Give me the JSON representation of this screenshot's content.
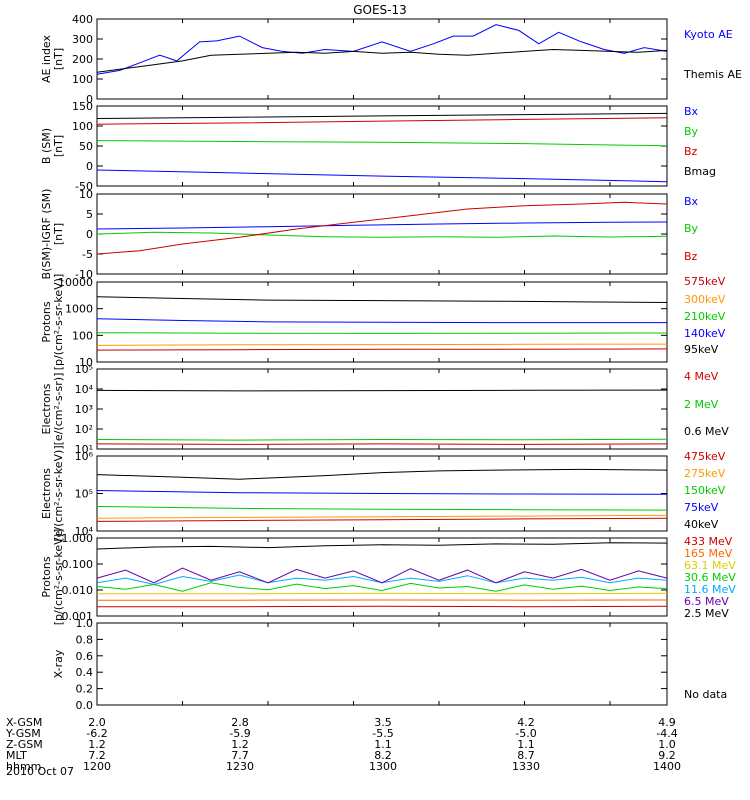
{
  "title": "GOES-13",
  "date": "2010 Oct 07",
  "no_data": "No data",
  "footer": [
    {
      "label": "X-GSM",
      "values": [
        "2.0",
        "2.8",
        "3.5",
        "4.2",
        "4.9"
      ]
    },
    {
      "label": "Y-GSM",
      "values": [
        "-6.2",
        "-5.9",
        "-5.5",
        "-5.0",
        "-4.4"
      ]
    },
    {
      "label": "Z-GSM",
      "values": [
        "1.2",
        "1.2",
        "1.1",
        "1.1",
        "1.0"
      ]
    },
    {
      "label": "MLT",
      "values": [
        "7.2",
        "7.7",
        "8.2",
        "8.7",
        "9.2"
      ]
    },
    {
      "label": "hhmm",
      "values": [
        "1200",
        "1230",
        "1300",
        "1330",
        "1400"
      ]
    }
  ],
  "chart_data": [
    {
      "type": "line",
      "ylabel_lines": [
        "AE index",
        "[nT]"
      ],
      "yscale": "linear",
      "ylim": [
        0,
        420
      ],
      "yticks": [
        "0",
        "100",
        "200",
        "300",
        "400"
      ],
      "xlim": [
        1200,
        1400
      ],
      "series": [
        {
          "name": "Kyoto AE",
          "color": "#0000ff",
          "x": [
            1200,
            1208,
            1215,
            1222,
            1228,
            1232,
            1236,
            1242,
            1250,
            1258,
            1265,
            1272,
            1280,
            1290,
            1300,
            1310,
            1318,
            1325,
            1332,
            1340,
            1348,
            1355,
            1362,
            1370,
            1378,
            1385,
            1392,
            1400
          ],
          "y": [
            130,
            150,
            190,
            230,
            200,
            250,
            300,
            305,
            330,
            270,
            250,
            240,
            260,
            250,
            300,
            250,
            290,
            330,
            330,
            390,
            360,
            290,
            350,
            300,
            260,
            240,
            270,
            250
          ]
        },
        {
          "name": "Themis AE",
          "color": "#000000",
          "x": [
            1200,
            1215,
            1230,
            1240,
            1250,
            1260,
            1270,
            1280,
            1290,
            1300,
            1310,
            1320,
            1330,
            1340,
            1350,
            1360,
            1370,
            1380,
            1390,
            1400
          ],
          "y": [
            140,
            170,
            200,
            230,
            235,
            240,
            245,
            240,
            250,
            240,
            245,
            235,
            230,
            240,
            250,
            260,
            255,
            250,
            245,
            255
          ]
        }
      ]
    },
    {
      "type": "line",
      "ylabel_lines": [
        "B (SM)",
        "[nT]"
      ],
      "yscale": "linear",
      "ylim": [
        -55,
        130
      ],
      "yticks": [
        "-50",
        "0",
        "50",
        "100",
        "150"
      ],
      "xlim": [
        1200,
        1400
      ],
      "series": [
        {
          "name": "Bx",
          "color": "#0000ff",
          "x": [
            1200,
            1250,
            1300,
            1350,
            1400
          ],
          "y": [
            -18,
            -25,
            -32,
            -38,
            -45
          ]
        },
        {
          "name": "By",
          "color": "#00cc00",
          "x": [
            1200,
            1250,
            1300,
            1350,
            1400
          ],
          "y": [
            50,
            48,
            46,
            43,
            38
          ]
        },
        {
          "name": "Bz",
          "color": "#cc0000",
          "x": [
            1200,
            1250,
            1300,
            1350,
            1400
          ],
          "y": [
            88,
            91,
            95,
            99,
            103
          ]
        },
        {
          "name": "Bmag",
          "color": "#000000",
          "x": [
            1200,
            1250,
            1300,
            1350,
            1400
          ],
          "y": [
            101,
            104,
            107,
            110,
            113
          ]
        }
      ]
    },
    {
      "type": "line",
      "ylabel_lines": [
        "B(SM)-IGRF (SM)",
        "[nT]"
      ],
      "yscale": "linear",
      "ylim": [
        -12,
        12
      ],
      "yticks": [
        "-10",
        "-5",
        "0",
        "5",
        "10"
      ],
      "xlim": [
        1200,
        1400
      ],
      "series": [
        {
          "name": "Bx",
          "color": "#0000ff",
          "x": [
            1200,
            1230,
            1260,
            1290,
            1320,
            1350,
            1380,
            1400
          ],
          "y": [
            1.5,
            1.8,
            2.2,
            2.6,
            3.0,
            3.3,
            3.5,
            3.6
          ]
        },
        {
          "name": "By",
          "color": "#00cc00",
          "x": [
            1200,
            1220,
            1240,
            1260,
            1280,
            1300,
            1320,
            1340,
            1360,
            1380,
            1400
          ],
          "y": [
            0,
            0.5,
            0.3,
            -0.3,
            -0.8,
            -1.0,
            -0.8,
            -1.0,
            -0.6,
            -0.9,
            -0.7
          ]
        },
        {
          "name": "Bz",
          "color": "#cc0000",
          "x": [
            1200,
            1215,
            1230,
            1250,
            1270,
            1290,
            1310,
            1330,
            1350,
            1370,
            1385,
            1400
          ],
          "y": [
            -6,
            -5,
            -3,
            -1,
            1.5,
            3.5,
            5.5,
            7.5,
            8.5,
            9.0,
            9.5,
            9.0
          ]
        }
      ]
    },
    {
      "type": "line",
      "ylabel_lines": [
        "Protons",
        "[p/(cm²-s-sr-keV)]"
      ],
      "yscale": "log",
      "ylim": [
        10,
        10000
      ],
      "yticks": [
        "10",
        "100",
        "1000",
        "10000"
      ],
      "xlim": [
        1200,
        1400
      ],
      "series": [
        {
          "name": "575keV",
          "color": "#cc0000",
          "x": [
            1200,
            1250,
            1300,
            1350,
            1400
          ],
          "y": [
            28,
            29,
            30,
            30,
            31
          ]
        },
        {
          "name": "300keV",
          "color": "#ff9900",
          "x": [
            1200,
            1250,
            1300,
            1350,
            1400
          ],
          "y": [
            42,
            44,
            45,
            46,
            47
          ]
        },
        {
          "name": "210keV",
          "color": "#00cc00",
          "x": [
            1200,
            1250,
            1300,
            1350,
            1400
          ],
          "y": [
            125,
            120,
            118,
            120,
            122
          ]
        },
        {
          "name": "140keV",
          "color": "#0000ff",
          "x": [
            1200,
            1230,
            1260,
            1300,
            1340,
            1400
          ],
          "y": [
            420,
            360,
            320,
            310,
            300,
            300
          ]
        },
        {
          "name": "95keV",
          "color": "#000000",
          "x": [
            1200,
            1230,
            1260,
            1300,
            1340,
            1370,
            1400
          ],
          "y": [
            2800,
            2400,
            2100,
            2000,
            1900,
            1800,
            1700
          ]
        }
      ]
    },
    {
      "type": "line",
      "ylabel_lines": [
        "Electrons",
        "[e/(cm²-s-sr)]"
      ],
      "yscale": "log",
      "ylim": [
        10,
        100000
      ],
      "yticks": [
        "10¹",
        "10²",
        "10³",
        "10⁴",
        "10⁵"
      ],
      "xlim": [
        1200,
        1400
      ],
      "series": [
        {
          "name": "4 MeV",
          "color": "#cc0000",
          "x": [
            1200,
            1250,
            1300,
            1350,
            1400
          ],
          "y": [
            18,
            17,
            18,
            17,
            18
          ]
        },
        {
          "name": "2 MeV",
          "color": "#00cc00",
          "x": [
            1200,
            1250,
            1300,
            1350,
            1400
          ],
          "y": [
            30,
            28,
            30,
            29,
            31
          ]
        },
        {
          "name": "0.6 MeV",
          "color": "#000000",
          "x": [
            1200,
            1250,
            1300,
            1350,
            1400
          ],
          "y": [
            8500,
            8000,
            8300,
            8600,
            8800
          ]
        }
      ]
    },
    {
      "type": "line",
      "ylabel_lines": [
        "Electrons",
        "[e/(cm²-s-sr-keV)]"
      ],
      "yscale": "log",
      "ylim": [
        10000,
        1000000
      ],
      "yticks": [
        "10⁴",
        "10⁵",
        "10⁶"
      ],
      "xlim": [
        1200,
        1400
      ],
      "series": [
        {
          "name": "475keV",
          "color": "#cc0000",
          "x": [
            1200,
            1250,
            1300,
            1350,
            1400
          ],
          "y": [
            18000,
            19000,
            20000,
            21000,
            22000
          ]
        },
        {
          "name": "275keV",
          "color": "#ff9900",
          "x": [
            1200,
            1250,
            1300,
            1350,
            1400
          ],
          "y": [
            22000,
            23000,
            24000,
            25000,
            26000
          ]
        },
        {
          "name": "150keV",
          "color": "#00cc00",
          "x": [
            1200,
            1250,
            1300,
            1350,
            1400
          ],
          "y": [
            45000,
            40000,
            38000,
            37000,
            36000
          ]
        },
        {
          "name": "75keV",
          "color": "#0000ff",
          "x": [
            1200,
            1250,
            1300,
            1350,
            1400
          ],
          "y": [
            120000,
            105000,
            100000,
            97000,
            95000
          ]
        },
        {
          "name": "40keV",
          "color": "#000000",
          "x": [
            1200,
            1230,
            1250,
            1280,
            1300,
            1320,
            1340,
            1370,
            1400
          ],
          "y": [
            320000,
            270000,
            240000,
            300000,
            360000,
            400000,
            420000,
            440000,
            420000
          ]
        }
      ]
    },
    {
      "type": "line",
      "ylabel_lines": [
        "Protons",
        "[p/(cm²-s-sr-keV)]"
      ],
      "yscale": "log",
      "ylim": [
        0.0008,
        4
      ],
      "yticks": [
        "0.001",
        "0.010",
        "0.100",
        "1.000"
      ],
      "xlim": [
        1200,
        1400
      ],
      "series": [
        {
          "name": "433 MeV",
          "color": "#cc0000",
          "x": [
            1200,
            1250,
            1300,
            1350,
            1400
          ],
          "y": [
            0.0022,
            0.0022,
            0.0023,
            0.0022,
            0.0023
          ]
        },
        {
          "name": "165 MeV",
          "color": "#ff6600",
          "x": [
            1200,
            1250,
            1300,
            1350,
            1400
          ],
          "y": [
            0.0045,
            0.0045,
            0.0046,
            0.0045,
            0.0046
          ]
        },
        {
          "name": "63.1 MeV",
          "color": "#ddcc00",
          "x": [
            1200,
            1250,
            1300,
            1350,
            1400
          ],
          "y": [
            0.009,
            0.009,
            0.0095,
            0.009,
            0.0095
          ]
        },
        {
          "name": "30.6 MeV",
          "color": "#00cc00",
          "x": [
            1200,
            1210,
            1220,
            1230,
            1240,
            1250,
            1260,
            1270,
            1280,
            1290,
            1300,
            1310,
            1320,
            1330,
            1340,
            1350,
            1360,
            1370,
            1380,
            1390,
            1400
          ],
          "y": [
            0.02,
            0.015,
            0.025,
            0.012,
            0.03,
            0.018,
            0.014,
            0.026,
            0.016,
            0.022,
            0.013,
            0.028,
            0.017,
            0.02,
            0.012,
            0.024,
            0.015,
            0.021,
            0.013,
            0.019,
            0.016
          ]
        },
        {
          "name": "11.6 MeV",
          "color": "#00aaff",
          "x": [
            1200,
            1210,
            1220,
            1230,
            1240,
            1250,
            1260,
            1270,
            1280,
            1290,
            1300,
            1310,
            1320,
            1330,
            1340,
            1350,
            1360,
            1370,
            1380,
            1390,
            1400
          ],
          "y": [
            0.03,
            0.05,
            0.025,
            0.06,
            0.035,
            0.07,
            0.03,
            0.05,
            0.04,
            0.06,
            0.03,
            0.05,
            0.035,
            0.065,
            0.03,
            0.05,
            0.04,
            0.055,
            0.03,
            0.05,
            0.04
          ]
        },
        {
          "name": "6.5 MeV",
          "color": "#6600aa",
          "x": [
            1200,
            1210,
            1220,
            1230,
            1240,
            1250,
            1260,
            1270,
            1280,
            1290,
            1300,
            1310,
            1320,
            1330,
            1340,
            1350,
            1360,
            1370,
            1380,
            1390,
            1400
          ],
          "y": [
            0.05,
            0.12,
            0.03,
            0.15,
            0.04,
            0.1,
            0.03,
            0.13,
            0.05,
            0.11,
            0.03,
            0.14,
            0.04,
            0.12,
            0.03,
            0.1,
            0.05,
            0.13,
            0.04,
            0.11,
            0.05
          ]
        },
        {
          "name": "2.5 MeV",
          "color": "#000000",
          "x": [
            1200,
            1220,
            1240,
            1260,
            1280,
            1300,
            1320,
            1340,
            1360,
            1380,
            1400
          ],
          "y": [
            1.2,
            1.5,
            1.6,
            1.4,
            1.7,
            1.9,
            1.8,
            2.1,
            2.0,
            2.4,
            2.3
          ]
        }
      ]
    },
    {
      "type": "line",
      "ylabel_lines": [
        "X-ray"
      ],
      "yscale": "linear",
      "ylim": [
        0,
        1
      ],
      "yticks": [
        "0.0",
        "0.2",
        "0.4",
        "0.6",
        "0.8",
        "1.0"
      ],
      "xlim": [
        1200,
        1400
      ],
      "series": []
    }
  ]
}
